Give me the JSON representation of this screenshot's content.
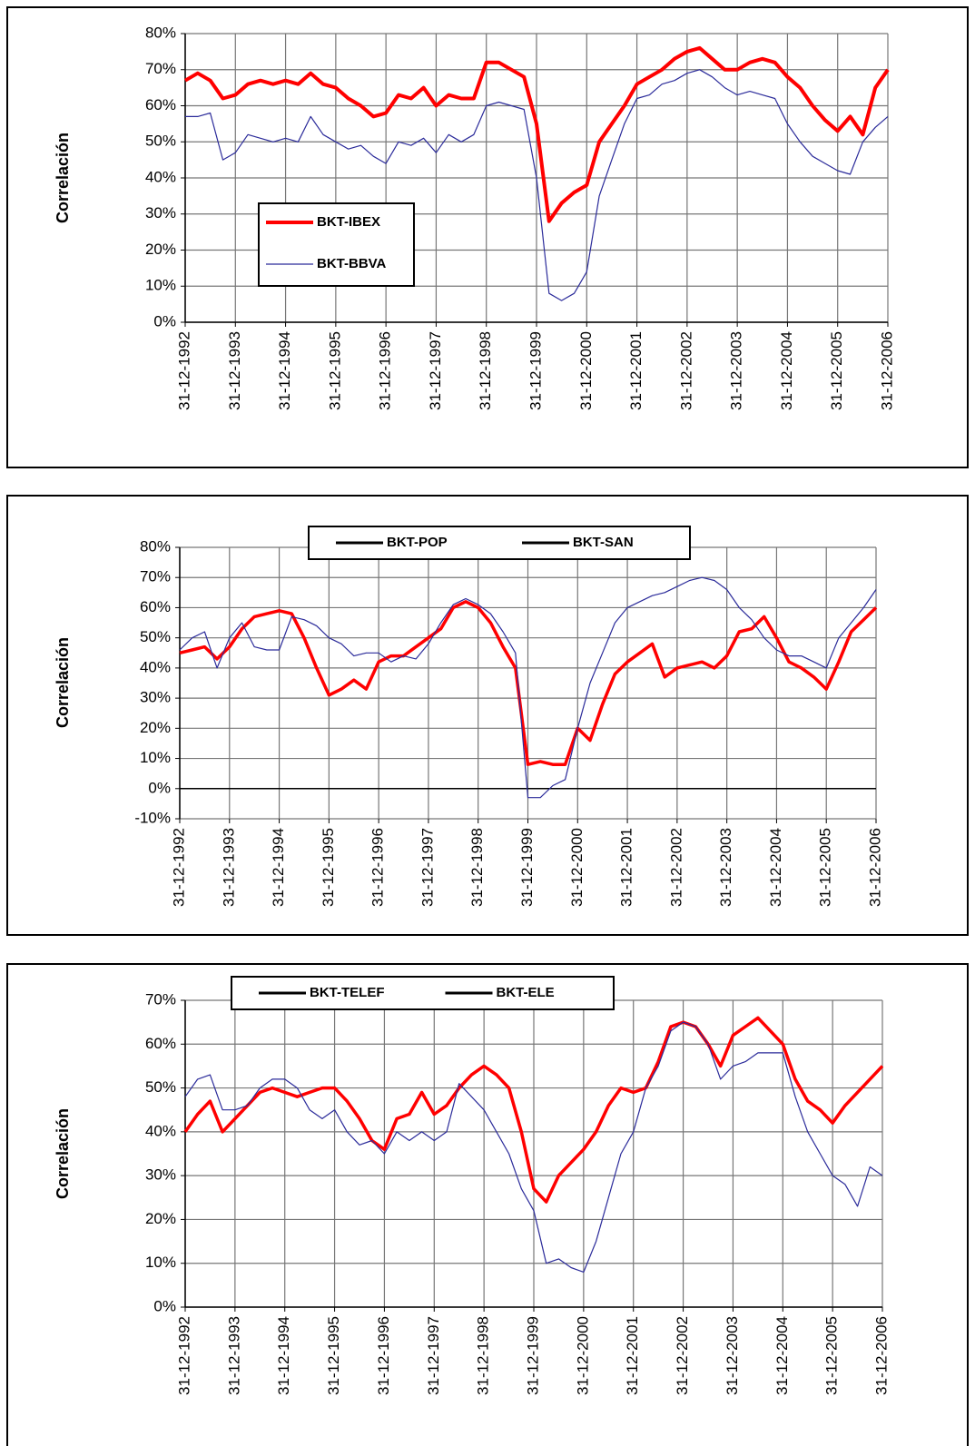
{
  "chart_data": [
    {
      "type": "line",
      "y_label": "Correlación",
      "x": [
        1993,
        1993.25,
        1993.5,
        1993.75,
        1994,
        1994.25,
        1994.5,
        1994.75,
        1995,
        1995.25,
        1995.5,
        1995.75,
        1996,
        1996.25,
        1996.5,
        1996.75,
        1997,
        1997.25,
        1997.5,
        1997.75,
        1998,
        1998.25,
        1998.5,
        1998.75,
        1999,
        1999.25,
        1999.5,
        1999.75,
        2000,
        2000.25,
        2000.5,
        2000.75,
        2001,
        2001.25,
        2001.5,
        2001.75,
        2002,
        2002.25,
        2002.5,
        2002.75,
        2003,
        2003.25,
        2003.5,
        2003.75,
        2004,
        2004.25,
        2004.5,
        2004.75,
        2005,
        2005.25,
        2005.5,
        2005.75,
        2006,
        2006.25,
        2006.5,
        2006.75,
        2007
      ],
      "series": [
        {
          "name": "BKT-IBEX",
          "color": "#ff0000",
          "width": 4,
          "values": [
            67,
            69,
            67,
            62,
            63,
            66,
            67,
            66,
            67,
            66,
            69,
            66,
            65,
            62,
            60,
            57,
            58,
            63,
            62,
            65,
            60,
            63,
            62,
            62,
            72,
            72,
            70,
            68,
            55,
            28,
            33,
            36,
            38,
            50,
            55,
            60,
            66,
            68,
            70,
            73,
            75,
            76,
            73,
            70,
            70,
            72,
            73,
            72,
            68,
            65,
            60,
            56,
            53,
            57,
            52,
            65,
            70
          ]
        },
        {
          "name": "BKT-BBVA",
          "color": "#2b2b9a",
          "width": 1.2,
          "values": [
            57,
            57,
            58,
            45,
            47,
            52,
            51,
            50,
            51,
            50,
            57,
            52,
            50,
            48,
            49,
            46,
            44,
            50,
            49,
            51,
            47,
            52,
            50,
            52,
            60,
            61,
            60,
            59,
            40,
            8,
            6,
            8,
            14,
            35,
            45,
            55,
            62,
            63,
            66,
            67,
            69,
            70,
            68,
            65,
            63,
            64,
            63,
            62,
            55,
            50,
            46,
            44,
            42,
            41,
            50,
            54,
            57
          ]
        }
      ],
      "xlim": [
        1993,
        2007
      ],
      "xticks": [
        {
          "value": 1993,
          "label": "31-12-1992"
        },
        {
          "value": 1994,
          "label": "31-12-1993"
        },
        {
          "value": 1995,
          "label": "31-12-1994"
        },
        {
          "value": 1996,
          "label": "31-12-1995"
        },
        {
          "value": 1997,
          "label": "31-12-1996"
        },
        {
          "value": 1998,
          "label": "31-12-1997"
        },
        {
          "value": 1999,
          "label": "31-12-1998"
        },
        {
          "value": 2000,
          "label": "31-12-1999"
        },
        {
          "value": 2001,
          "label": "31-12-2000"
        },
        {
          "value": 2002,
          "label": "31-12-2001"
        },
        {
          "value": 2003,
          "label": "31-12-2002"
        },
        {
          "value": 2004,
          "label": "31-12-2003"
        },
        {
          "value": 2005,
          "label": "31-12-2004"
        },
        {
          "value": 2006,
          "label": "31-12-2005"
        },
        {
          "value": 2007,
          "label": "31-12-2006"
        }
      ],
      "ylim": [
        0,
        80
      ],
      "yticks": [
        {
          "value": 0,
          "label": "0%"
        },
        {
          "value": 10,
          "label": "10%"
        },
        {
          "value": 20,
          "label": "20%"
        },
        {
          "value": 30,
          "label": "30%"
        },
        {
          "value": 40,
          "label": "40%"
        },
        {
          "value": 50,
          "label": "50%"
        },
        {
          "value": 60,
          "label": "60%"
        },
        {
          "value": 70,
          "label": "70%"
        },
        {
          "value": 80,
          "label": "80%"
        }
      ],
      "grid": true,
      "legend": "center-left"
    },
    {
      "type": "line",
      "y_label": "Correlación",
      "x": [
        1993,
        1993.25,
        1993.5,
        1993.75,
        1994,
        1994.25,
        1994.5,
        1994.75,
        1995,
        1995.25,
        1995.5,
        1995.75,
        1996,
        1996.25,
        1996.5,
        1996.75,
        1997,
        1997.25,
        1997.5,
        1997.75,
        1998,
        1998.25,
        1998.5,
        1998.75,
        1999,
        1999.25,
        1999.5,
        1999.75,
        2000,
        2000.25,
        2000.5,
        2000.75,
        2001,
        2001.25,
        2001.5,
        2001.75,
        2002,
        2002.25,
        2002.5,
        2002.75,
        2003,
        2003.25,
        2003.5,
        2003.75,
        2004,
        2004.25,
        2004.5,
        2004.75,
        2005,
        2005.25,
        2005.5,
        2005.75,
        2006,
        2006.25,
        2006.5,
        2006.75,
        2007
      ],
      "series": [
        {
          "name": "BKT-POP",
          "color": "#ff0000",
          "width": 3.5,
          "values": [
            45,
            46,
            47,
            43,
            47,
            53,
            57,
            58,
            59,
            58,
            50,
            40,
            31,
            33,
            36,
            33,
            42,
            44,
            44,
            47,
            50,
            53,
            60,
            62,
            60,
            55,
            47,
            40,
            8,
            9,
            8,
            8,
            20,
            16,
            28,
            38,
            42,
            45,
            48,
            37,
            40,
            41,
            42,
            40,
            44,
            52,
            53,
            57,
            50,
            42,
            40,
            37,
            33,
            42,
            52,
            56,
            60
          ]
        },
        {
          "name": "BKT-SAN",
          "color": "#2b2b9a",
          "width": 1.2,
          "values": [
            46,
            50,
            52,
            40,
            50,
            55,
            47,
            46,
            46,
            57,
            56,
            54,
            50,
            48,
            44,
            45,
            45,
            42,
            44,
            43,
            48,
            55,
            61,
            63,
            61,
            58,
            52,
            45,
            -3,
            -3,
            1,
            3,
            20,
            35,
            45,
            55,
            60,
            62,
            64,
            65,
            67,
            69,
            70,
            69,
            66,
            60,
            56,
            50,
            46,
            44,
            44,
            42,
            40,
            50,
            55,
            60,
            66
          ]
        }
      ],
      "xlim": [
        1993,
        2007
      ],
      "xticks": [
        {
          "value": 1993,
          "label": "31-12-1992"
        },
        {
          "value": 1994,
          "label": "31-12-1993"
        },
        {
          "value": 1995,
          "label": "31-12-1994"
        },
        {
          "value": 1996,
          "label": "31-12-1995"
        },
        {
          "value": 1997,
          "label": "31-12-1996"
        },
        {
          "value": 1998,
          "label": "31-12-1997"
        },
        {
          "value": 1999,
          "label": "31-12-1998"
        },
        {
          "value": 2000,
          "label": "31-12-1999"
        },
        {
          "value": 2001,
          "label": "31-12-2000"
        },
        {
          "value": 2002,
          "label": "31-12-2001"
        },
        {
          "value": 2003,
          "label": "31-12-2002"
        },
        {
          "value": 2004,
          "label": "31-12-2003"
        },
        {
          "value": 2005,
          "label": "31-12-2004"
        },
        {
          "value": 2006,
          "label": "31-12-2005"
        },
        {
          "value": 2007,
          "label": "31-12-2006"
        }
      ],
      "ylim": [
        -10,
        80
      ],
      "yticks": [
        {
          "value": -10,
          "label": "-10%"
        },
        {
          "value": 0,
          "label": "0%"
        },
        {
          "value": 10,
          "label": "10%"
        },
        {
          "value": 20,
          "label": "20%"
        },
        {
          "value": 30,
          "label": "30%"
        },
        {
          "value": 40,
          "label": "40%"
        },
        {
          "value": 50,
          "label": "50%"
        },
        {
          "value": 60,
          "label": "60%"
        },
        {
          "value": 70,
          "label": "70%"
        },
        {
          "value": 80,
          "label": "80%"
        }
      ],
      "grid": true,
      "legend": "top",
      "legend_line_color": "#000000"
    },
    {
      "type": "line",
      "y_label": "Correlación",
      "x": [
        1993,
        1993.25,
        1993.5,
        1993.75,
        1994,
        1994.25,
        1994.5,
        1994.75,
        1995,
        1995.25,
        1995.5,
        1995.75,
        1996,
        1996.25,
        1996.5,
        1996.75,
        1997,
        1997.25,
        1997.5,
        1997.75,
        1998,
        1998.25,
        1998.5,
        1998.75,
        1999,
        1999.25,
        1999.5,
        1999.75,
        2000,
        2000.25,
        2000.5,
        2000.75,
        2001,
        2001.25,
        2001.5,
        2001.75,
        2002,
        2002.25,
        2002.5,
        2002.75,
        2003,
        2003.25,
        2003.5,
        2003.75,
        2004,
        2004.25,
        2004.5,
        2004.75,
        2005,
        2005.25,
        2005.5,
        2005.75,
        2006,
        2006.25,
        2006.5,
        2006.75,
        2007
      ],
      "series": [
        {
          "name": "BKT-TELEF",
          "color": "#ff0000",
          "width": 3.5,
          "values": [
            40,
            44,
            47,
            40,
            43,
            46,
            49,
            50,
            49,
            48,
            49,
            50,
            50,
            47,
            43,
            38,
            36,
            43,
            44,
            49,
            44,
            46,
            50,
            53,
            55,
            53,
            50,
            40,
            27,
            24,
            30,
            33,
            36,
            40,
            46,
            50,
            49,
            50,
            56,
            64,
            65,
            64,
            60,
            55,
            62,
            64,
            66,
            63,
            60,
            52,
            47,
            45,
            42,
            46,
            49,
            52,
            55
          ]
        },
        {
          "name": "BKT-ELE",
          "color": "#2b2b9a",
          "width": 1.2,
          "values": [
            48,
            52,
            53,
            45,
            45,
            46,
            50,
            52,
            52,
            50,
            45,
            43,
            45,
            40,
            37,
            38,
            35,
            40,
            38,
            40,
            38,
            40,
            51,
            48,
            45,
            40,
            35,
            27,
            22,
            10,
            11,
            9,
            8,
            15,
            25,
            35,
            40,
            50,
            55,
            63,
            65,
            64,
            60,
            52,
            55,
            56,
            58,
            58,
            58,
            48,
            40,
            35,
            30,
            28,
            23,
            32,
            30
          ]
        }
      ],
      "xlim": [
        1993,
        2007
      ],
      "xticks": [
        {
          "value": 1993,
          "label": "31-12-1992"
        },
        {
          "value": 1994,
          "label": "31-12-1993"
        },
        {
          "value": 1995,
          "label": "31-12-1994"
        },
        {
          "value": 1996,
          "label": "31-12-1995"
        },
        {
          "value": 1997,
          "label": "31-12-1996"
        },
        {
          "value": 1998,
          "label": "31-12-1997"
        },
        {
          "value": 1999,
          "label": "31-12-1998"
        },
        {
          "value": 2000,
          "label": "31-12-1999"
        },
        {
          "value": 2001,
          "label": "31-12-2000"
        },
        {
          "value": 2002,
          "label": "31-12-2001"
        },
        {
          "value": 2003,
          "label": "31-12-2002"
        },
        {
          "value": 2004,
          "label": "31-12-2003"
        },
        {
          "value": 2005,
          "label": "31-12-2004"
        },
        {
          "value": 2006,
          "label": "31-12-2005"
        },
        {
          "value": 2007,
          "label": "31-12-2006"
        }
      ],
      "ylim": [
        0,
        70
      ],
      "yticks": [
        {
          "value": 0,
          "label": "0%"
        },
        {
          "value": 10,
          "label": "10%"
        },
        {
          "value": 20,
          "label": "20%"
        },
        {
          "value": 30,
          "label": "30%"
        },
        {
          "value": 40,
          "label": "40%"
        },
        {
          "value": 50,
          "label": "50%"
        },
        {
          "value": 60,
          "label": "60%"
        },
        {
          "value": 70,
          "label": "70%"
        }
      ],
      "grid": true,
      "legend": "top",
      "legend_line_color": "#000000"
    }
  ]
}
